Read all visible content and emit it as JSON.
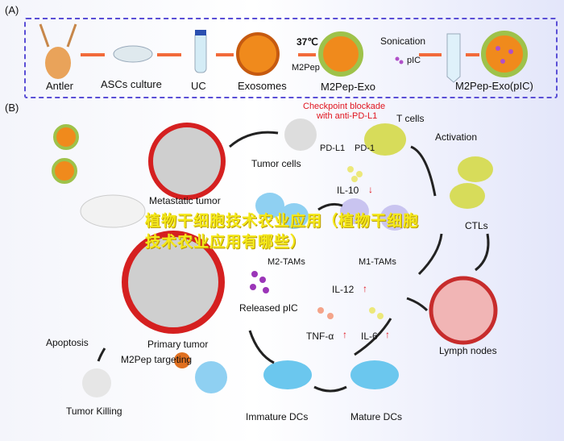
{
  "panel_a": {
    "label": "(A)",
    "steps": [
      "Antler",
      "ASCs culture",
      "UC",
      "Exosomes",
      "M2Pep-Exo",
      "M2Pep-Exo(pIC)"
    ],
    "temp": "37℃",
    "m2pep": "M2Pep",
    "sonication": "Sonication",
    "pic": "pIC"
  },
  "panel_b": {
    "label": "(B)",
    "checkpoint": "Checkpoint blockade",
    "checkpoint2": "with anti-PD-L1",
    "t_cells": "T cells",
    "pd_l1": "PD-L1",
    "pd_1": "PD-1",
    "tumor_cells": "Tumor cells",
    "activation": "Activation",
    "metastatic": "Metastatic tumor",
    "il10": "IL-10",
    "ctls": "CTLs",
    "m2tams": "M2-TAMs",
    "m1tams": "M1-TAMs",
    "il12": "IL-12",
    "released": "Released pIC",
    "tnf": "TNF-α",
    "il6": "IL-6",
    "lymph": "Lymph nodes",
    "apoptosis": "Apoptosis",
    "primary": "Primary tumor",
    "targeting": "M2Pep targeting",
    "killing": "Tumor Killing",
    "immature": "Immature DCs",
    "mature": "Mature DCs",
    "up": "↑",
    "down": "↓"
  },
  "watermark": "植物干细胞技术农业应用（植物干细胞技术农业应用有哪些）",
  "colors": {
    "border": "#5a4fd6",
    "arrow": "#f26a3a",
    "red": "#e0141e",
    "overlay": "#f4e81a"
  }
}
